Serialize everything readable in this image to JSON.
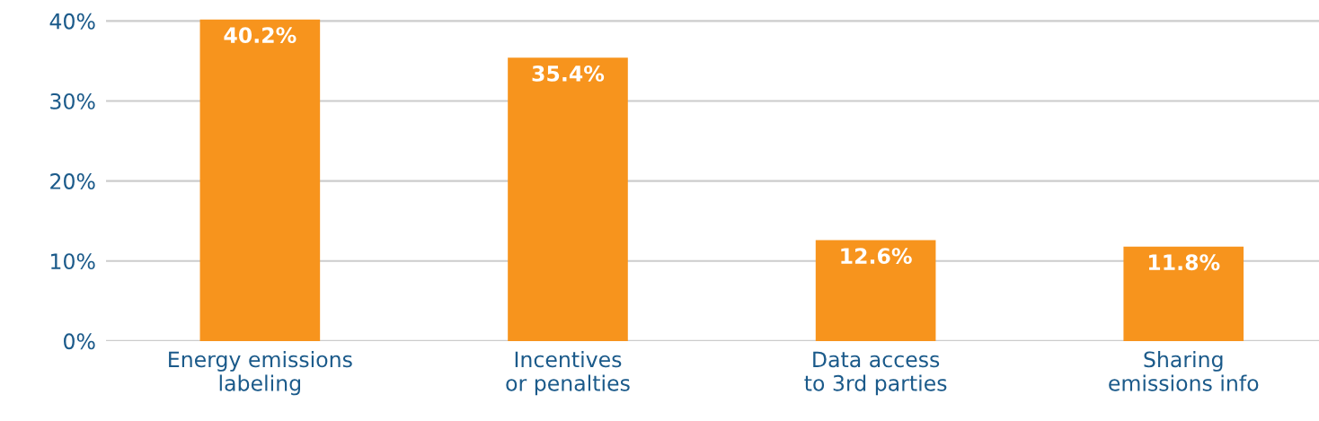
{
  "chart_data": {
    "type": "bar",
    "categories": [
      "Energy emissions\nlabeling",
      "Incentives\nor penalties",
      "Data access\nto 3rd parties",
      "Sharing\nemissions info"
    ],
    "values": [
      40.2,
      35.4,
      12.6,
      11.8
    ],
    "value_labels": [
      "40.2%",
      "35.4%",
      "12.6%",
      "11.8%"
    ],
    "color": "#f7941d",
    "ylim": [
      0,
      40.2
    ],
    "yticks": [
      {
        "value": 0,
        "label": "0%"
      },
      {
        "value": 10,
        "label": "10%"
      },
      {
        "value": 20,
        "label": "20%"
      },
      {
        "value": 30,
        "label": "30%"
      },
      {
        "value": 40,
        "label": "40%"
      }
    ],
    "grid": "y"
  }
}
